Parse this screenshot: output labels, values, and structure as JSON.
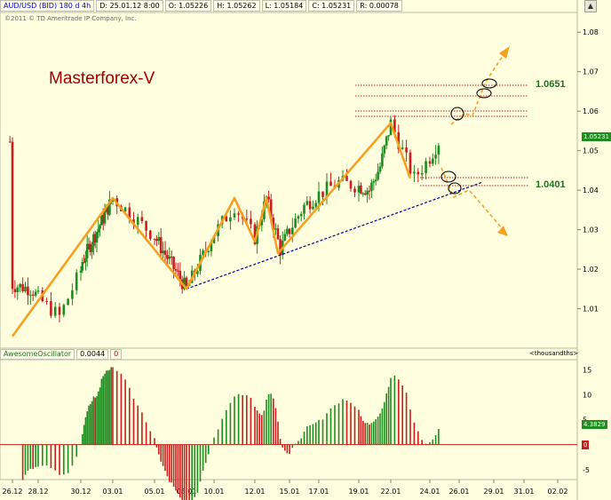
{
  "header": {
    "symbol": "AUD/USD (BID) 180 d 4h",
    "date": "D: 25.01.12 8:00",
    "open": "O: 1.05226",
    "high": "H: 1.05262",
    "low": "L: 1.05184",
    "close": "C: 1.05231",
    "range": "R: 0.00078"
  },
  "copyright": "©2011 © TD Ameritrade IP Company, Inc.",
  "brand": "Masterforex-V",
  "levels": {
    "upper": "1.0651",
    "lower": "1.0401"
  },
  "oscillator": {
    "name": "AwesomeOscillator",
    "value": "0.0044",
    "zero": "0",
    "units": "<thousandths>",
    "tag": "4.3829",
    "zero_tag": "0"
  },
  "price_tag": "1.05231",
  "colors": {
    "background": "#ffffe0",
    "up": "#1e8c1e",
    "down": "#c81e1e",
    "pattern": "#f5a020",
    "level_line": "#c02020",
    "trend_line": "#00008b"
  },
  "chart_data": [
    {
      "type": "candlestick",
      "ylim": [
        1.0,
        1.085
      ],
      "y_ticks": [
        "1.01",
        "1.02",
        "1.03",
        "1.04",
        "1.05",
        "1.06",
        "1.07",
        "1.08"
      ],
      "x_ticks": [
        "26.12",
        "28.12",
        "30.12",
        "03.01",
        "05.01",
        "08.01",
        "10.01",
        "12.01",
        "15.01",
        "17.01",
        "19.01",
        "22.01",
        "24.01",
        "26.01",
        "29.01",
        "31.01",
        "02.02"
      ],
      "zigzag": [
        {
          "date": "26.12",
          "value": 1.003
        },
        {
          "date": "03.01",
          "value": 1.038
        },
        {
          "date": "08.01",
          "value": 1.015
        },
        {
          "date": "11.01",
          "value": 1.038
        },
        {
          "date": "12.01",
          "value": 1.027
        },
        {
          "date": "13.01",
          "value": 1.038
        },
        {
          "date": "14.01",
          "value": 1.024
        },
        {
          "date": "22.01",
          "value": 1.057
        },
        {
          "date": "23.01",
          "value": 1.043
        }
      ],
      "levels": [
        1.0651,
        1.0628,
        1.0593,
        1.0575,
        1.0428,
        1.0401
      ],
      "trend_line": [
        {
          "date": "08.01",
          "value": 1.015
        },
        {
          "date": "25.01",
          "value": 1.042
        }
      ],
      "last_close": 1.05231
    },
    {
      "type": "bar",
      "name": "AwesomeOscillator",
      "ylim": [
        -7,
        17
      ],
      "y_ticks": [
        "-5",
        "0",
        "5",
        "10",
        "15"
      ]
    }
  ]
}
